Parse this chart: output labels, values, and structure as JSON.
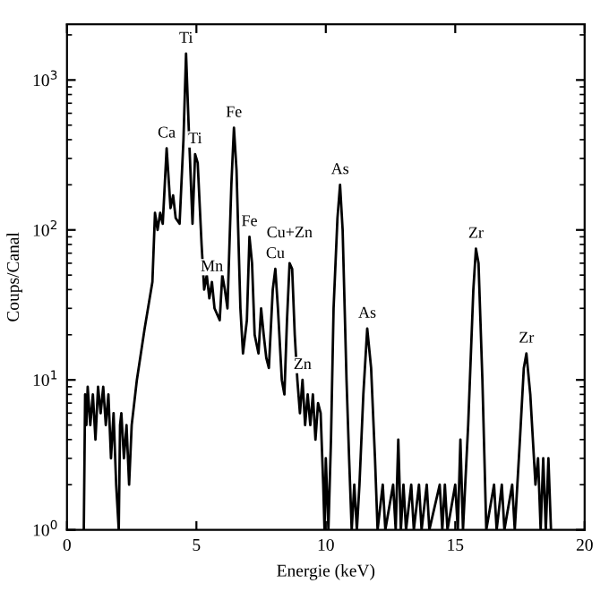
{
  "chart_data": {
    "type": "line",
    "xlabel": "Energie (keV)",
    "ylabel": "Coups/Canal",
    "log": "y",
    "xlim": [
      0,
      20
    ],
    "ylim": [
      1,
      2350
    ],
    "xticks": [
      0,
      5,
      10,
      15,
      20
    ],
    "yticks": [
      {
        "value": 1,
        "label": "10$^{0}$"
      },
      {
        "value": 10,
        "label": "10$^{1}$"
      },
      {
        "value": 100,
        "label": "10$^{2}$"
      },
      {
        "value": 1000,
        "label": "10$^{3}$"
      }
    ],
    "grid": false,
    "legend": false,
    "marker": "none",
    "line_style": "solid",
    "series": [
      {
        "color": "#000000",
        "x": [
          0.65,
          0.7,
          0.75,
          0.8,
          0.9,
          1.0,
          1.1,
          1.2,
          1.3,
          1.4,
          1.5,
          1.6,
          1.7,
          1.8,
          1.9,
          2.0,
          2.05,
          2.1,
          2.2,
          2.3,
          2.4,
          2.5,
          2.7,
          3.0,
          3.3,
          3.4,
          3.5,
          3.6,
          3.7,
          3.85,
          4.0,
          4.1,
          4.2,
          4.35,
          4.5,
          4.6,
          4.7,
          4.85,
          4.95,
          5.05,
          5.2,
          5.3,
          5.4,
          5.5,
          5.6,
          5.7,
          5.9,
          6.0,
          6.1,
          6.2,
          6.35,
          6.45,
          6.55,
          6.7,
          6.8,
          6.95,
          7.05,
          7.15,
          7.25,
          7.4,
          7.5,
          7.6,
          7.7,
          7.8,
          7.95,
          8.05,
          8.15,
          8.3,
          8.4,
          8.5,
          8.6,
          8.7,
          8.8,
          8.9,
          9.0,
          9.1,
          9.2,
          9.3,
          9.4,
          9.5,
          9.6,
          9.7,
          9.8,
          9.9,
          9.95,
          10.0,
          10.1,
          10.2,
          10.3,
          10.45,
          10.55,
          10.65,
          10.8,
          10.9,
          11.0,
          11.1,
          11.2,
          11.3,
          11.45,
          11.6,
          11.75,
          11.9,
          12.0,
          12.2,
          12.3,
          12.6,
          12.7,
          12.8,
          12.9,
          13.0,
          13.1,
          13.3,
          13.4,
          13.6,
          13.7,
          13.9,
          14.0,
          14.4,
          14.5,
          14.6,
          14.7,
          15.0,
          15.1,
          15.2,
          15.3,
          15.5,
          15.7,
          15.8,
          15.9,
          16.05,
          16.2,
          16.5,
          16.6,
          16.8,
          16.9,
          17.2,
          17.3,
          17.5,
          17.65,
          17.75,
          17.9,
          18.1,
          18.2,
          18.3,
          18.4,
          18.5,
          18.6,
          18.7
        ],
        "values": [
          1,
          8,
          5,
          9,
          5,
          8,
          4,
          9,
          6,
          9,
          5,
          8,
          3,
          6,
          2,
          1,
          5,
          6,
          3,
          5,
          2,
          5,
          10,
          22,
          45,
          130,
          100,
          130,
          110,
          350,
          140,
          170,
          120,
          110,
          400,
          1500,
          500,
          110,
          320,
          280,
          80,
          40,
          50,
          35,
          45,
          30,
          25,
          50,
          40,
          30,
          200,
          480,
          250,
          30,
          15,
          25,
          90,
          60,
          20,
          15,
          30,
          20,
          14,
          12,
          40,
          55,
          30,
          10,
          8,
          25,
          60,
          55,
          20,
          10,
          6,
          10,
          5,
          8,
          5,
          8,
          4,
          7,
          6,
          2,
          1,
          3,
          1,
          4,
          30,
          120,
          200,
          100,
          10,
          3,
          1,
          2,
          1,
          2,
          8,
          22,
          12,
          3,
          1,
          2,
          1,
          2,
          1,
          4,
          1,
          2,
          1,
          2,
          1,
          2,
          1,
          2,
          1,
          2,
          1,
          2,
          1,
          2,
          1,
          4,
          1,
          5,
          40,
          75,
          60,
          10,
          1,
          2,
          1,
          2,
          1,
          2,
          1,
          4,
          12,
          15,
          8,
          2,
          3,
          1,
          3,
          1,
          3,
          1
        ]
      }
    ],
    "annotations": [
      {
        "text": "Ca",
        "x": 3.85,
        "y": 350
      },
      {
        "text": "Ti",
        "x": 4.6,
        "y": 1500
      },
      {
        "text": "Ti",
        "x": 4.95,
        "y": 320
      },
      {
        "text": "Fe",
        "x": 6.45,
        "y": 480
      },
      {
        "text": "Mn",
        "x": 5.6,
        "y": 45
      },
      {
        "text": "Fe",
        "x": 7.05,
        "y": 90
      },
      {
        "text": "Cu",
        "x": 8.05,
        "y": 55
      },
      {
        "text": "Cu+Zn",
        "x": 8.6,
        "y": 60
      },
      {
        "text": "Zn",
        "x": 9.1,
        "y": 10
      },
      {
        "text": "As",
        "x": 10.55,
        "y": 200
      },
      {
        "text": "As",
        "x": 11.6,
        "y": 22
      },
      {
        "text": "Zr",
        "x": 15.8,
        "y": 75
      },
      {
        "text": "Zr",
        "x": 17.75,
        "y": 15
      }
    ]
  }
}
